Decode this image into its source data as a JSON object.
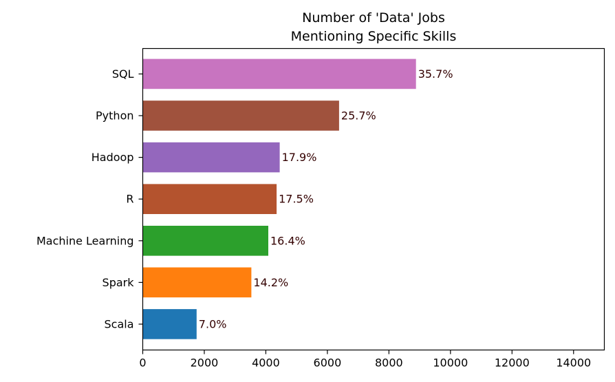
{
  "chart_data": {
    "type": "bar",
    "orientation": "horizontal",
    "title_lines": [
      "Number of 'Data' Jobs",
      "Mentioning Specific Skills"
    ],
    "categories": [
      "Scala",
      "Spark",
      "Machine Learning",
      "R",
      "Hadoop",
      "Python",
      "SQL"
    ],
    "values": [
      1750,
      3530,
      4080,
      4350,
      4450,
      6380,
      8880
    ],
    "data_labels": [
      "7.0%",
      "14.2%",
      "16.4%",
      "17.5%",
      "17.9%",
      "25.7%",
      "35.7%"
    ],
    "colors": [
      "#1f77b4",
      "#ff7f0e",
      "#2ca02c",
      "#b4532e",
      "#9467bd",
      "#a0523d",
      "#c874c0"
    ],
    "xlim": [
      0,
      15000
    ],
    "xticks": [
      0,
      2000,
      4000,
      6000,
      8000,
      10000,
      12000,
      14000
    ],
    "xlabel": "",
    "ylabel": "",
    "grid": false,
    "legend": "none"
  }
}
